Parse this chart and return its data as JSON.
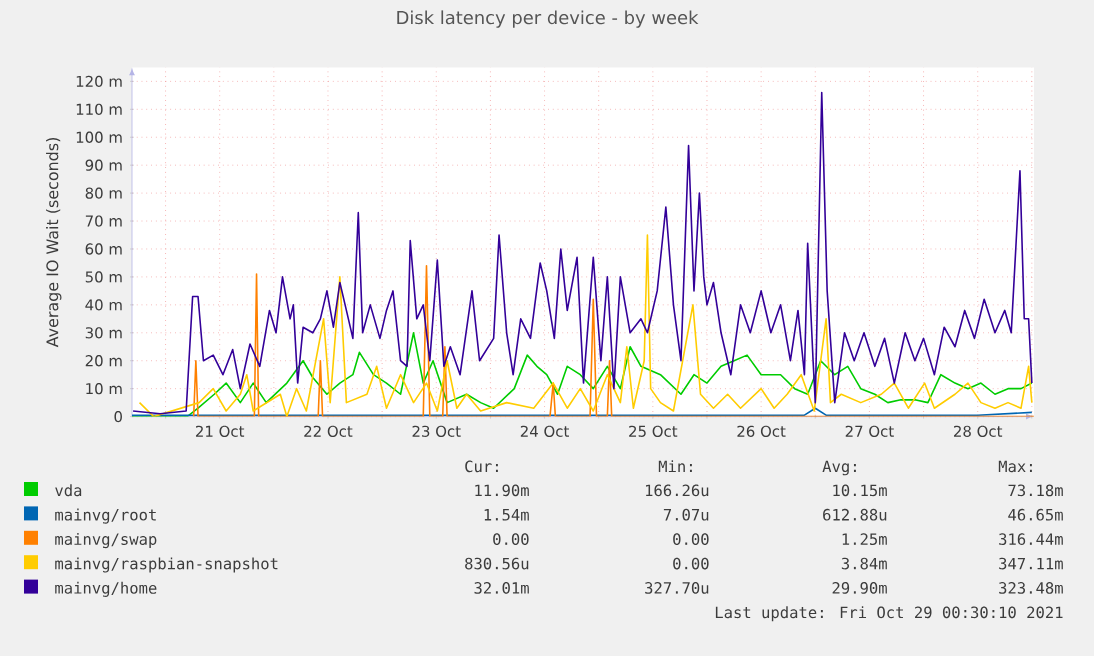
{
  "chart_data": {
    "type": "line",
    "title": "Disk latency per device - by week",
    "ylabel": "Average IO Wait (seconds)",
    "xlim": [
      "2021-10-20T16:34",
      "2021-10-29T00:29"
    ],
    "ylim": [
      0,
      125
    ],
    "xticks": [
      {
        "value": "2021-10-21",
        "label": null
      },
      {
        "value": "2021-10-21T12:00",
        "label": "21 Oct"
      },
      {
        "value": "2021-10-22",
        "label": null
      },
      {
        "value": "2021-10-22T12:00",
        "label": "22 Oct"
      },
      {
        "value": "2021-10-23",
        "label": null
      },
      {
        "value": "2021-10-23T12:00",
        "label": "23 Oct"
      },
      {
        "value": "2021-10-24",
        "label": null
      },
      {
        "value": "2021-10-24T12:00",
        "label": "24 Oct"
      },
      {
        "value": "2021-10-25",
        "label": null
      },
      {
        "value": "2021-10-25T12:00",
        "label": "25 Oct"
      },
      {
        "value": "2021-10-26",
        "label": null
      },
      {
        "value": "2021-10-26T12:00",
        "label": "26 Oct"
      },
      {
        "value": "2021-10-27",
        "label": null
      },
      {
        "value": "2021-10-27T12:00",
        "label": "27 Oct"
      },
      {
        "value": "2021-10-28",
        "label": null
      },
      {
        "value": "2021-10-28T12:00",
        "label": "28 Oct"
      },
      {
        "value": "2021-10-29",
        "label": null
      }
    ],
    "yticks": [
      0,
      {
        "value": 10,
        "label": "10 m"
      },
      {
        "value": 20,
        "label": "20 m"
      },
      {
        "value": 30,
        "label": "30 m"
      },
      {
        "value": 40,
        "label": "40 m"
      },
      {
        "value": 50,
        "label": "50 m"
      },
      {
        "value": 60,
        "label": "60 m"
      },
      {
        "value": 70,
        "label": "70 m"
      },
      {
        "value": 80,
        "label": "80 m"
      },
      {
        "value": 90,
        "label": "90 m"
      },
      {
        "value": 100,
        "label": "100 m"
      },
      {
        "value": 110,
        "label": "110 m"
      },
      {
        "value": 120,
        "label": "120 m"
      }
    ],
    "grid": true,
    "legend": "bottom",
    "series": [
      {
        "name": "vda",
        "color": "#00cc00",
        "x": [
          "2021-10-20T16:34",
          "2021-10-21T04:48",
          "2021-10-21T07:12",
          "2021-10-21T10:48",
          "2021-10-21T13:26",
          "2021-10-21T16:34",
          "2021-10-21T19:26",
          "2021-10-21T22:19",
          "2021-10-22T02:53",
          "2021-10-22T06:29",
          "2021-10-22T08:38",
          "2021-10-22T11:46",
          "2021-10-22T14:38",
          "2021-10-22T17:31",
          "2021-10-22T18:58",
          "2021-10-22T22:05",
          "2021-10-23T00:58",
          "2021-10-23T04:05",
          "2021-10-23T06:58",
          "2021-10-23T09:07",
          "2021-10-23T11:17",
          "2021-10-23T14:24",
          "2021-10-23T18:43",
          "2021-10-23T21:50",
          "2021-10-24T00:43",
          "2021-10-24T05:17",
          "2021-10-24T08:10",
          "2021-10-24T10:19",
          "2021-10-24T12:29",
          "2021-10-24T14:53",
          "2021-10-24T17:02",
          "2021-10-24T19:55",
          "2021-10-24T22:48",
          "2021-10-25T01:55",
          "2021-10-25T04:48",
          "2021-10-25T06:58",
          "2021-10-25T09:22",
          "2021-10-25T13:41",
          "2021-10-25T18:14",
          "2021-10-25T21:07",
          "2021-10-26T00:00",
          "2021-10-26T03:07",
          "2021-10-26T06:00",
          "2021-10-26T08:53",
          "2021-10-26T12:00",
          "2021-10-26T16:19",
          "2021-10-26T19:26",
          "2021-10-26T22:19",
          "2021-10-27T01:12",
          "2021-10-27T04:19",
          "2021-10-27T07:12",
          "2021-10-27T10:05",
          "2021-10-27T13:12",
          "2021-10-27T16:05",
          "2021-10-27T18:58",
          "2021-10-27T22:05",
          "2021-10-28T00:58",
          "2021-10-28T03:50",
          "2021-10-28T06:58",
          "2021-10-28T09:50",
          "2021-10-28T12:43",
          "2021-10-28T15:50",
          "2021-10-28T18:43",
          "2021-10-28T21:36",
          "2021-10-29T00:00"
        ],
        "values": [
          0,
          0,
          3,
          8,
          12,
          5,
          12,
          5,
          12,
          20,
          14,
          8,
          12,
          15,
          23,
          15,
          12,
          8,
          30,
          12,
          20,
          5,
          8,
          5,
          3,
          10,
          22,
          18,
          15,
          8,
          18,
          15,
          10,
          18,
          10,
          25,
          18,
          15,
          8,
          15,
          12,
          18,
          20,
          22,
          15,
          15,
          10,
          8,
          20,
          15,
          18,
          10,
          8,
          5,
          6,
          6,
          5,
          15,
          12,
          10,
          12,
          8,
          10,
          10,
          12
        ]
      },
      {
        "name": "mainvg/root",
        "color": "#0066b3",
        "x": [
          "2021-10-20T16:34",
          "2021-10-22T00:00",
          "2021-10-24T12:00",
          "2021-10-26T21:36",
          "2021-10-27T00:00",
          "2021-10-27T02:24",
          "2021-10-28T12:00",
          "2021-10-29T00:00"
        ],
        "values": [
          0.5,
          0.5,
          0.5,
          0.5,
          3,
          0.5,
          0.5,
          1.5
        ]
      },
      {
        "name": "mainvg/swap",
        "color": "#ff8000",
        "x": [
          "2021-10-21T06:14",
          "2021-10-21T06:43",
          "2021-10-21T07:12",
          "2021-10-21T19:41",
          "2021-10-21T20:10",
          "2021-10-21T20:38",
          "2021-10-22T09:50",
          "2021-10-22T10:19",
          "2021-10-22T10:48",
          "2021-10-23T09:07",
          "2021-10-23T09:50",
          "2021-10-23T10:34",
          "2021-10-23T13:26",
          "2021-10-23T13:55",
          "2021-10-23T14:24",
          "2021-10-24T13:12",
          "2021-10-24T13:55",
          "2021-10-24T14:24",
          "2021-10-24T22:05",
          "2021-10-24T22:48",
          "2021-10-24T23:31",
          "2021-10-25T01:55",
          "2021-10-25T02:24",
          "2021-10-25T02:53",
          "2021-10-29T00:29"
        ],
        "values": [
          0,
          20,
          0,
          0,
          51,
          0,
          0,
          20,
          0,
          0,
          54,
          0,
          0,
          25,
          0,
          0,
          12,
          0,
          0,
          42,
          0,
          0,
          20,
          0,
          0
        ]
      },
      {
        "name": "mainvg/raspbian-snapshot",
        "color": "#ffcc00",
        "x": [
          "2021-10-20T18:14",
          "2021-10-20T21:22",
          "2021-10-21T07:26",
          "2021-10-21T10:34",
          "2021-10-21T13:26",
          "2021-10-21T16:34",
          "2021-10-21T18:00",
          "2021-10-21T19:26",
          "2021-10-22T01:26",
          "2021-10-22T02:53",
          "2021-10-22T05:02",
          "2021-10-22T07:12",
          "2021-10-22T11:02",
          "2021-10-22T12:29",
          "2021-10-22T14:38",
          "2021-10-22T16:05",
          "2021-10-22T20:38",
          "2021-10-22T22:48",
          "2021-10-23T00:58",
          "2021-10-23T04:05",
          "2021-10-23T06:58",
          "2021-10-23T09:50",
          "2021-10-23T12:14",
          "2021-10-23T14:24",
          "2021-10-23T16:34",
          "2021-10-23T18:43",
          "2021-10-23T21:50",
          "2021-10-24T03:36",
          "2021-10-24T09:36",
          "2021-10-24T13:55",
          "2021-10-24T17:02",
          "2021-10-24T19:55",
          "2021-10-24T22:48",
          "2021-10-25T01:55",
          "2021-10-25T04:48",
          "2021-10-25T06:14",
          "2021-10-25T07:41",
          "2021-10-25T10:05",
          "2021-10-25T10:48",
          "2021-10-25T11:31",
          "2021-10-25T13:41",
          "2021-10-25T16:34",
          "2021-10-25T20:53",
          "2021-10-25T22:34",
          "2021-10-26T01:26",
          "2021-10-26T04:34",
          "2021-10-26T07:26",
          "2021-10-26T12:00",
          "2021-10-26T14:53",
          "2021-10-26T17:46",
          "2021-10-26T20:53",
          "2021-10-26T23:46",
          "2021-10-27T02:24",
          "2021-10-27T03:22",
          "2021-10-27T05:46",
          "2021-10-27T10:05",
          "2021-10-27T14:38",
          "2021-10-27T17:31",
          "2021-10-27T20:38",
          "2021-10-28T00:14",
          "2021-10-28T02:24",
          "2021-10-28T06:58",
          "2021-10-28T09:50",
          "2021-10-28T12:43",
          "2021-10-28T15:50",
          "2021-10-28T18:43",
          "2021-10-28T21:36",
          "2021-10-28T23:17",
          "2021-10-29T00:00"
        ],
        "values": [
          5,
          0,
          5,
          10,
          2,
          8,
          15,
          2,
          8,
          0,
          10,
          2,
          35,
          5,
          50,
          5,
          8,
          18,
          3,
          15,
          5,
          12,
          2,
          20,
          3,
          8,
          2,
          5,
          3,
          12,
          3,
          10,
          2,
          15,
          5,
          25,
          3,
          20,
          65,
          10,
          5,
          2,
          40,
          8,
          3,
          8,
          3,
          10,
          3,
          8,
          15,
          2,
          35,
          5,
          8,
          5,
          8,
          12,
          3,
          12,
          3,
          8,
          12,
          5,
          3,
          5,
          3,
          18,
          5
        ]
      },
      {
        "name": "mainvg/home",
        "color": "#330099",
        "x": [
          "2021-10-20T16:48",
          "2021-10-20T22:48",
          "2021-10-21T04:34",
          "2021-10-21T06:00",
          "2021-10-21T07:12",
          "2021-10-21T08:24",
          "2021-10-21T10:34",
          "2021-10-21T12:43",
          "2021-10-21T14:53",
          "2021-10-21T16:34",
          "2021-10-21T18:43",
          "2021-10-21T20:53",
          "2021-10-21T23:02",
          "2021-10-22T00:29",
          "2021-10-22T01:55",
          "2021-10-22T03:36",
          "2021-10-22T04:19",
          "2021-10-22T05:17",
          "2021-10-22T06:29",
          "2021-10-22T08:38",
          "2021-10-22T10:19",
          "2021-10-22T11:46",
          "2021-10-22T13:12",
          "2021-10-22T14:38",
          "2021-10-22T16:05",
          "2021-10-22T17:31",
          "2021-10-22T18:43",
          "2021-10-22T19:41",
          "2021-10-22T21:22",
          "2021-10-22T23:31",
          "2021-10-23T00:58",
          "2021-10-23T02:24",
          "2021-10-23T04:05",
          "2021-10-23T05:31",
          "2021-10-23T06:14",
          "2021-10-23T07:41",
          "2021-10-23T09:07",
          "2021-10-23T10:34",
          "2021-10-23T12:14",
          "2021-10-23T13:41",
          "2021-10-23T15:07",
          "2021-10-23T17:17",
          "2021-10-23T19:55",
          "2021-10-23T21:36",
          "2021-10-24T00:43",
          "2021-10-24T01:55",
          "2021-10-24T03:36",
          "2021-10-24T05:02",
          "2021-10-24T06:43",
          "2021-10-24T08:53",
          "2021-10-24T11:02",
          "2021-10-24T12:29",
          "2021-10-24T14:10",
          "2021-10-24T15:36",
          "2021-10-24T17:02",
          "2021-10-24T19:12",
          "2021-10-24T20:38",
          "2021-10-24T22:48",
          "2021-10-25T00:29",
          "2021-10-25T01:55",
          "2021-10-25T03:22",
          "2021-10-25T04:48",
          "2021-10-25T06:58",
          "2021-10-25T09:22",
          "2021-10-25T10:48",
          "2021-10-25T12:58",
          "2021-10-25T14:53",
          "2021-10-25T16:34",
          "2021-10-25T18:14",
          "2021-10-25T19:55",
          "2021-10-25T21:07",
          "2021-10-25T22:19",
          "2021-10-25T23:17",
          "2021-10-26T00:00",
          "2021-10-26T01:26",
          "2021-10-26T03:07",
          "2021-10-26T05:17",
          "2021-10-26T07:26",
          "2021-10-26T09:36",
          "2021-10-26T12:00",
          "2021-10-26T14:10",
          "2021-10-26T16:19",
          "2021-10-26T18:29",
          "2021-10-26T20:10",
          "2021-10-26T21:36",
          "2021-10-26T22:19",
          "2021-10-26T23:31",
          "2021-10-27T00:00",
          "2021-10-27T01:26",
          "2021-10-27T02:38",
          "2021-10-27T04:19",
          "2021-10-27T06:29",
          "2021-10-27T08:38",
          "2021-10-27T10:48",
          "2021-10-27T13:12",
          "2021-10-27T15:22",
          "2021-10-27T17:31",
          "2021-10-27T19:55",
          "2021-10-27T22:05",
          "2021-10-28T00:00",
          "2021-10-28T02:24",
          "2021-10-28T04:34",
          "2021-10-28T06:58",
          "2021-10-28T09:07",
          "2021-10-28T11:17",
          "2021-10-28T13:26",
          "2021-10-28T15:50",
          "2021-10-28T18:00",
          "2021-10-28T19:26",
          "2021-10-28T21:22",
          "2021-10-28T22:19",
          "2021-10-28T23:17",
          "2021-10-29T00:00"
        ],
        "values": [
          2,
          1,
          2,
          43,
          43,
          20,
          22,
          15,
          24,
          10,
          26,
          18,
          38,
          30,
          50,
          35,
          40,
          12,
          32,
          30,
          35,
          45,
          32,
          48,
          38,
          28,
          73,
          30,
          40,
          28,
          38,
          45,
          20,
          18,
          63,
          35,
          40,
          20,
          56,
          18,
          25,
          15,
          45,
          20,
          28,
          65,
          30,
          15,
          35,
          28,
          55,
          45,
          28,
          60,
          38,
          57,
          12,
          57,
          20,
          50,
          10,
          50,
          30,
          35,
          30,
          45,
          75,
          40,
          20,
          97,
          45,
          80,
          50,
          40,
          48,
          30,
          15,
          40,
          30,
          45,
          30,
          40,
          20,
          38,
          15,
          62,
          20,
          5,
          116,
          45,
          5,
          30,
          20,
          30,
          18,
          28,
          12,
          30,
          20,
          28,
          15,
          32,
          25,
          38,
          28,
          42,
          30,
          38,
          30,
          88,
          35,
          35,
          12
        ]
      }
    ],
    "annotations": [
      "Cur:",
      "Min:",
      "Avg:",
      "Max:",
      "11.90m",
      "166.26u",
      "10.15m",
      "73.18m",
      "1.54m",
      "7.07u",
      "612.88u",
      "46.65m",
      "0.00",
      "0.00",
      "1.25m",
      "316.44m",
      "830.56u",
      "0.00",
      "3.84m",
      "347.11m",
      "32.01m",
      "327.70u",
      "29.90m",
      "323.48m",
      "Last update: Fri Oct 29 00:30:10 2021"
    ]
  }
}
